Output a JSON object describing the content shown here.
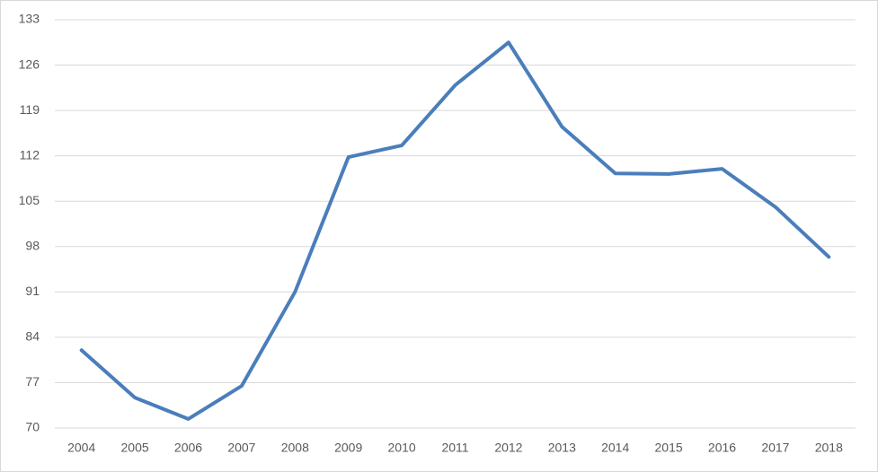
{
  "chart_data": {
    "type": "line",
    "categories": [
      "2004",
      "2005",
      "2006",
      "2007",
      "2008",
      "2009",
      "2010",
      "2011",
      "2012",
      "2013",
      "2014",
      "2015",
      "2016",
      "2017",
      "2018"
    ],
    "values": [
      82.0,
      74.7,
      71.4,
      76.5,
      91.0,
      111.8,
      113.6,
      122.9,
      129.5,
      116.5,
      109.3,
      109.2,
      110.0,
      104.1,
      96.4
    ],
    "color": "#4a7ebb",
    "ylim": [
      70,
      133
    ],
    "yticks": [
      70,
      77,
      84,
      91,
      98,
      105,
      112,
      119,
      126,
      133
    ],
    "grid": true
  }
}
